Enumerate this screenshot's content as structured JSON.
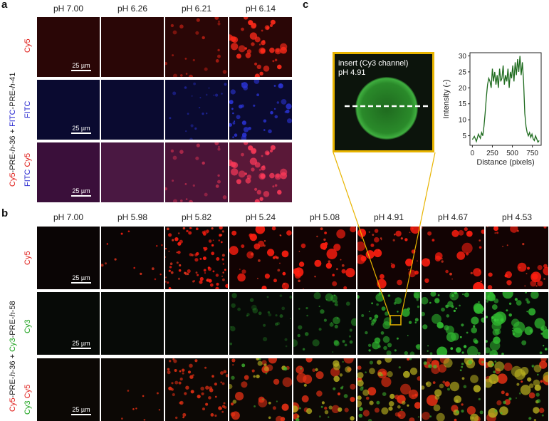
{
  "panel_a": {
    "letter": "a",
    "col_heads": [
      "pH 7.00",
      "pH 6.26",
      "pH 6.21",
      "pH 6.14"
    ],
    "side_label": {
      "p1": "Cy5",
      "p2": "-PRE-",
      "p3": "h",
      "p4": "-36 + ",
      "p5": "FITC",
      "p6": "-PRE-",
      "p7": "h",
      "p8": "-41"
    },
    "row_labels": [
      {
        "parts": [
          {
            "text": "Cy5",
            "color": "red"
          }
        ]
      },
      {
        "parts": [
          {
            "text": "FITC",
            "color": "blue"
          }
        ]
      },
      {
        "parts": [
          {
            "text": "FITC ",
            "color": "blue"
          },
          {
            "text": "Cy5",
            "color": "red"
          }
        ]
      }
    ],
    "scalebar": "25 µm"
  },
  "panel_b": {
    "letter": "b",
    "col_heads": [
      "pH 7.00",
      "pH 5.98",
      "pH 5.82",
      "pH 5.24",
      "pH 5.08",
      "pH 4.91",
      "pH 4.67",
      "pH 4.53"
    ],
    "side_label": {
      "p1": "Cy5",
      "p2": "-PRE-",
      "p3": "h",
      "p4": "-36 + ",
      "p5": "Cy3",
      "p6": "-PRE-",
      "p7": "h",
      "p8": "-58"
    },
    "row_labels": [
      {
        "parts": [
          {
            "text": "Cy5",
            "color": "red"
          }
        ]
      },
      {
        "parts": [
          {
            "text": "Cy3",
            "color": "green"
          }
        ]
      },
      {
        "parts": [
          {
            "text": "Cy3 ",
            "color": "green"
          },
          {
            "text": "Cy5",
            "color": "red"
          }
        ]
      }
    ],
    "scalebar": "25 µm"
  },
  "panel_c": {
    "letter": "c",
    "insert_line1": "insert (Cy3 channel)",
    "insert_line2": "pH 4.91",
    "plot": {
      "ylabel": "Intensity (-)",
      "xlabel": "Distance (pixels)",
      "xticks": [
        "0",
        "250",
        "500",
        "750"
      ],
      "yticks": [
        "5",
        "10",
        "15",
        "20",
        "25",
        "30"
      ]
    }
  },
  "chart_data": {
    "type": "line",
    "xlabel": "Distance (pixels)",
    "ylabel": "Intensity (-)",
    "xlim": [
      -30,
      860
    ],
    "ylim": [
      2,
      31
    ],
    "line_color": "#1e6b1e",
    "x": [
      0,
      25,
      50,
      75,
      100,
      115,
      130,
      145,
      160,
      175,
      190,
      205,
      220,
      235,
      250,
      265,
      280,
      295,
      310,
      325,
      340,
      355,
      370,
      385,
      400,
      415,
      430,
      445,
      460,
      475,
      490,
      505,
      520,
      535,
      550,
      565,
      580,
      595,
      610,
      625,
      640,
      655,
      670,
      685,
      700,
      715,
      730,
      745,
      760,
      775,
      790,
      805,
      820,
      835
    ],
    "y": [
      3.8,
      4.8,
      3.2,
      5.5,
      4.2,
      6,
      5,
      8,
      12,
      17,
      21,
      23,
      22,
      20,
      26,
      22,
      25,
      21,
      24,
      20,
      26,
      22,
      23,
      27,
      21,
      24,
      22,
      26,
      20,
      25,
      23,
      27,
      22,
      28,
      24,
      29,
      25,
      30,
      24,
      28,
      22,
      12,
      8,
      6,
      5,
      6,
      4.5,
      5.5,
      4,
      3.5,
      5,
      4,
      3,
      3.5
    ]
  },
  "colors": {
    "red_dot": "#ff2a1a",
    "blue_dot": "#2b34d8",
    "green_dot": "#2fb52f",
    "inset_border": "#e8b400"
  }
}
